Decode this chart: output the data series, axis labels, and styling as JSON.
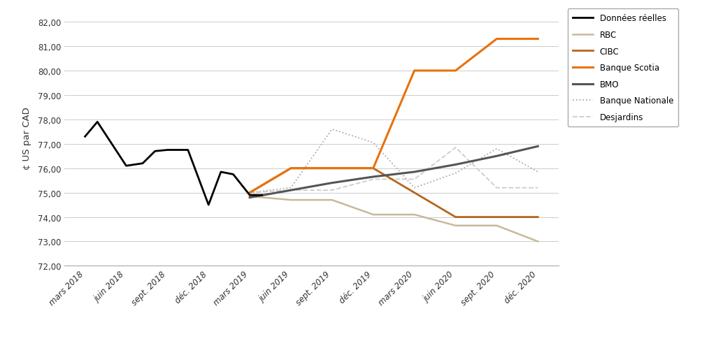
{
  "x_labels": [
    "mars 2018",
    "juin 2018",
    "sept. 2018",
    "déc. 2018",
    "mars 2019",
    "juin 2019",
    "sept. 2019",
    "déc. 2019",
    "mars 2020",
    "juin 2020",
    "sept. 2020",
    "déc. 2020"
  ],
  "series": [
    {
      "name": "Données réelles",
      "x_vals": [
        0,
        0.3,
        1,
        1.4,
        1.7,
        2,
        2.5,
        3,
        3.3,
        3.6,
        4,
        4.3
      ],
      "y_vals": [
        77.3,
        77.9,
        76.1,
        76.2,
        76.7,
        76.75,
        76.75,
        74.5,
        75.85,
        75.75,
        74.9,
        74.9
      ],
      "color": "#000000",
      "linewidth": 2.0,
      "linestyle": "solid",
      "zorder": 5
    },
    {
      "name": "RBC",
      "x_vals": [
        4,
        5,
        6,
        7,
        8,
        9,
        10,
        11
      ],
      "y_vals": [
        74.85,
        74.7,
        74.7,
        74.1,
        74.1,
        73.65,
        73.65,
        73.0
      ],
      "color": "#c8b99a",
      "linewidth": 1.8,
      "linestyle": "solid",
      "zorder": 3
    },
    {
      "name": "CIBC",
      "x_vals": [
        4,
        5,
        6,
        7,
        8,
        9,
        10,
        11
      ],
      "y_vals": [
        75.0,
        76.0,
        76.0,
        76.0,
        75.0,
        74.0,
        74.0,
        74.0
      ],
      "color": "#b5651d",
      "linewidth": 2.0,
      "linestyle": "solid",
      "zorder": 3
    },
    {
      "name": "Banque Scotia",
      "x_vals": [
        4,
        5,
        6,
        7,
        8,
        9,
        10,
        11
      ],
      "y_vals": [
        75.0,
        76.0,
        76.0,
        76.0,
        80.0,
        80.0,
        81.3,
        81.3
      ],
      "color": "#e8720c",
      "linewidth": 2.2,
      "linestyle": "solid",
      "zorder": 4
    },
    {
      "name": "BMO",
      "x_vals": [
        4,
        5,
        6,
        7,
        8,
        9,
        10,
        11
      ],
      "y_vals": [
        74.8,
        75.1,
        75.4,
        75.65,
        75.85,
        76.15,
        76.5,
        76.9
      ],
      "color": "#555555",
      "linewidth": 2.2,
      "linestyle": "solid",
      "zorder": 4
    },
    {
      "name": "Banque Nationale",
      "x_vals": [
        4,
        5,
        6,
        7,
        8,
        9,
        10,
        11
      ],
      "y_vals": [
        75.0,
        75.2,
        77.6,
        77.05,
        75.2,
        75.8,
        76.8,
        75.85
      ],
      "color": "#aaaaaa",
      "linewidth": 1.3,
      "linestyle": "dotted",
      "zorder": 2
    },
    {
      "name": "Desjardins",
      "x_vals": [
        4,
        5,
        6,
        7,
        8,
        9,
        10,
        11
      ],
      "y_vals": [
        75.0,
        75.1,
        75.1,
        75.55,
        75.55,
        76.85,
        75.2,
        75.2
      ],
      "color": "#cccccc",
      "linewidth": 1.3,
      "linestyle": "dashed",
      "zorder": 2
    }
  ],
  "legend_specs": [
    {
      "label": "Données réelles",
      "color": "#000000",
      "linestyle": "solid",
      "linewidth": 2.0
    },
    {
      "label": "RBC",
      "color": "#c8b99a",
      "linestyle": "solid",
      "linewidth": 1.8
    },
    {
      "label": "CIBC",
      "color": "#b5651d",
      "linestyle": "solid",
      "linewidth": 2.0
    },
    {
      "label": "Banque Scotia",
      "color": "#e8720c",
      "linestyle": "solid",
      "linewidth": 2.2
    },
    {
      "label": "BMO",
      "color": "#555555",
      "linestyle": "solid",
      "linewidth": 2.2
    },
    {
      "label": "Banque Nationale",
      "color": "#aaaaaa",
      "linestyle": "dotted",
      "linewidth": 1.3
    },
    {
      "label": "Desjardins",
      "color": "#cccccc",
      "linestyle": "dashed",
      "linewidth": 1.3
    }
  ],
  "ylabel": "¢ US par CAD",
  "ylim": [
    72.0,
    82.5
  ],
  "yticks": [
    72.0,
    73.0,
    74.0,
    75.0,
    76.0,
    77.0,
    78.0,
    79.0,
    80.0,
    81.0,
    82.0
  ],
  "xlim": [
    -0.5,
    11.5
  ]
}
